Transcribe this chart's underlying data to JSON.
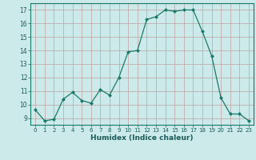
{
  "x": [
    0,
    1,
    2,
    3,
    4,
    5,
    6,
    7,
    8,
    9,
    10,
    11,
    12,
    13,
    14,
    15,
    16,
    17,
    18,
    19,
    20,
    21,
    22,
    23
  ],
  "y": [
    9.6,
    8.8,
    8.9,
    10.4,
    10.9,
    10.3,
    10.1,
    11.1,
    10.7,
    12.0,
    13.9,
    14.0,
    16.3,
    16.5,
    17.0,
    16.9,
    17.0,
    17.0,
    15.4,
    13.6,
    10.5,
    9.3,
    9.3,
    8.8
  ],
  "line_color": "#1a7a6a",
  "marker": "D",
  "marker_size": 2,
  "bg_color": "#cceaea",
  "grid_color": "#c0a0a0",
  "xlabel": "Humidex (Indice chaleur)",
  "ylabel_ticks": [
    9,
    10,
    11,
    12,
    13,
    14,
    15,
    16,
    17
  ],
  "ylim": [
    8.5,
    17.5
  ],
  "xlim": [
    -0.5,
    23.5
  ]
}
